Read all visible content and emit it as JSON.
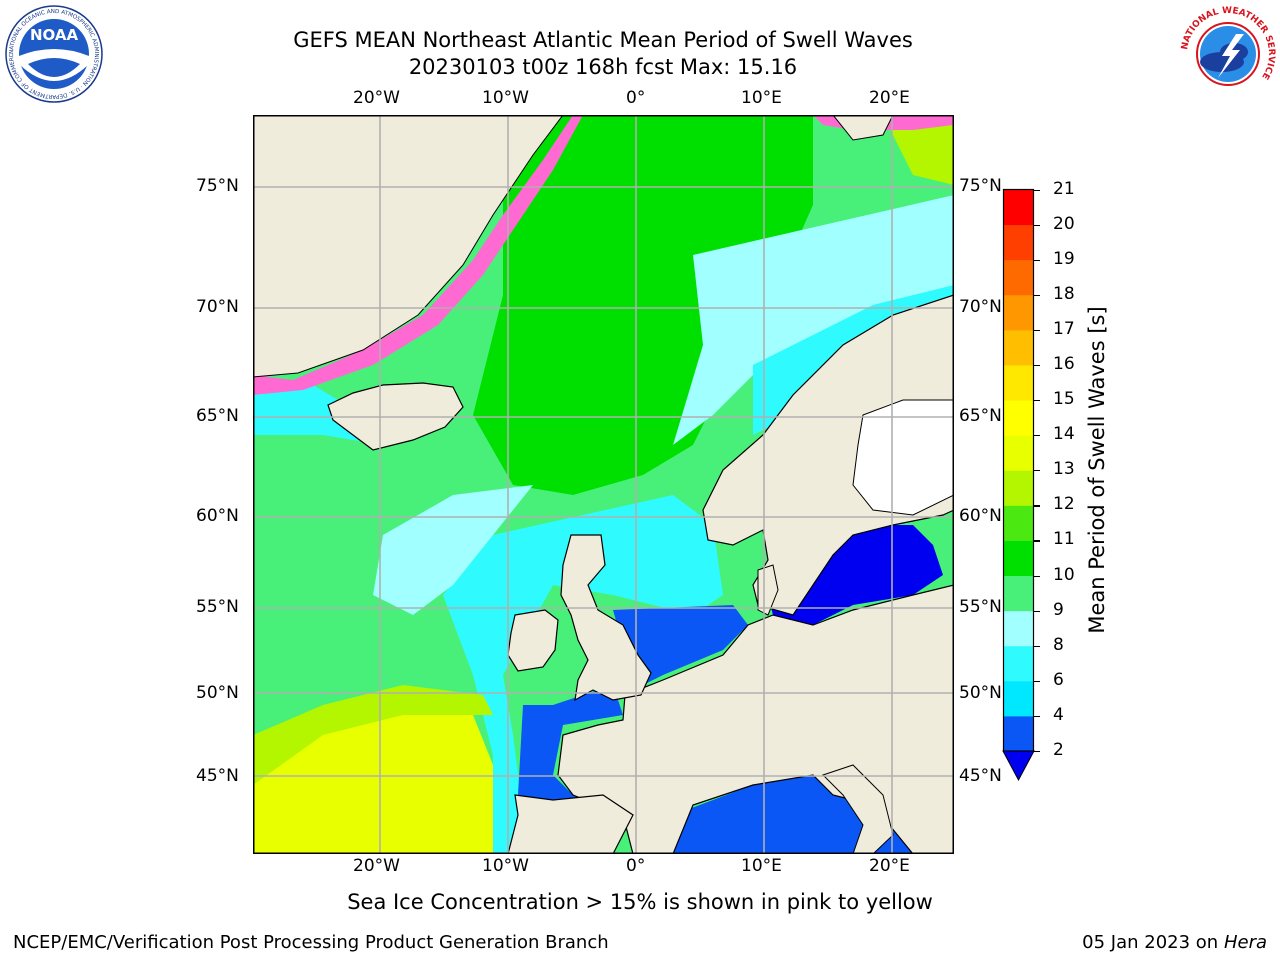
{
  "title": {
    "line1": "GEFS MEAN Northeast Atlantic Mean Period of Swell Waves",
    "line2": "20230103 t00z 168h fcst   Max: 15.16"
  },
  "map": {
    "extent": {
      "lon": [
        -30,
        25
      ],
      "lat": [
        41,
        78
      ]
    },
    "lon_ticks": [
      "20°W",
      "10°W",
      "0°",
      "10°E",
      "20°E"
    ],
    "lat_ticks": [
      "75°N",
      "70°N",
      "65°N",
      "60°N",
      "55°N",
      "50°N",
      "45°N"
    ],
    "ocean_color": "#48f07a",
    "land_color": "#efecdc",
    "grid": true
  },
  "colorbar": {
    "label": "Mean Period of Swell Waves [s]",
    "ticks": [
      "2",
      "4",
      "6",
      "8",
      "9",
      "10",
      "11",
      "12",
      "13",
      "14",
      "15",
      "16",
      "17",
      "18",
      "19",
      "20",
      "21"
    ],
    "colors": [
      "#0a57f5",
      "#00e8ff",
      "#2ffbff",
      "#a2ffff",
      "#48f07a",
      "#00e000",
      "#4ce812",
      "#b4f500",
      "#e8ff00",
      "#ffff00",
      "#ffe800",
      "#ffbf00",
      "#ff9800",
      "#ff6a00",
      "#ff3f00",
      "#ff0000"
    ],
    "extend_color": "#0000f0"
  },
  "ice_note": "Sea Ice Concentration > 15% is shown in pink to yellow",
  "footer": {
    "left": "NCEP/EMC/Verification Post Processing Product Generation Branch",
    "right_date": "05 Jan 2023 on ",
    "right_host": "Hera"
  },
  "logos": {
    "noaa_text": "NOAA",
    "noaa_ring": "NATIONAL OCEANIC AND ATMOSPHERIC ADMINISTRATION · U.S. DEPARTMENT OF COMMERCE",
    "nws_ring": "NATIONAL WEATHER SERVICE"
  }
}
